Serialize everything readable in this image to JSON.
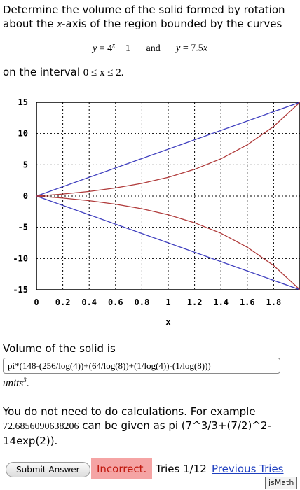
{
  "problem": {
    "intro": "Determine the volume of the solid formed by rotation about the ",
    "axis_var": "x",
    "intro_end": "-axis of the region bounded by the curves",
    "curve1_lhs": "y",
    "curve1_rhs": " = 4",
    "curve1_exp": "x",
    "curve1_tail": " − 1",
    "connector": "and",
    "curve2_lhs": "y",
    "curve2_rhs": " = 7.5",
    "curve2_var": "x",
    "interval_prefix": "on the interval ",
    "interval_expr": "0 ≤ x ≤ 2."
  },
  "chart_data": {
    "type": "line",
    "xlabel": "x",
    "ylabel": "",
    "xlim": [
      0,
      2
    ],
    "ylim": [
      -15,
      15
    ],
    "x_ticks": [
      "0",
      "0.2",
      "0.4",
      "0.6",
      "0.8",
      "1",
      "1.2",
      "1.4",
      "1.6",
      "1.8"
    ],
    "y_ticks": [
      "15",
      "10",
      "5",
      "0",
      "-5",
      "-10",
      "-15"
    ],
    "grid": true,
    "series": [
      {
        "color": "#3f3fbf",
        "x": [
          0,
          2
        ],
        "y": [
          0,
          15
        ]
      },
      {
        "color": "#3f3fbf",
        "x": [
          0,
          2
        ],
        "y": [
          0,
          -15
        ]
      },
      {
        "color": "#b03a3a",
        "x": [
          0,
          0.2,
          0.4,
          0.6,
          0.8,
          1.0,
          1.2,
          1.4,
          1.6,
          1.8,
          2.0
        ],
        "y": [
          0,
          0.32,
          0.74,
          1.3,
          2.03,
          3.0,
          4.28,
          5.96,
          8.19,
          11.13,
          15
        ]
      },
      {
        "color": "#b03a3a",
        "x": [
          0,
          0.2,
          0.4,
          0.6,
          0.8,
          1.0,
          1.2,
          1.4,
          1.6,
          1.8,
          2.0
        ],
        "y": [
          0,
          -0.32,
          -0.74,
          -1.3,
          -2.03,
          -3.0,
          -4.28,
          -5.96,
          -8.19,
          -11.13,
          -15
        ]
      }
    ]
  },
  "answer": {
    "label": "Volume of the solid is",
    "value": "pi*(148-(256/log(4))+(64/log(8))+(1/log(4))-(1/log(8)))",
    "units": "units",
    "units_sup": "3"
  },
  "note": {
    "text1": "You do not need to do calculations. For example ",
    "example_number": "72.6856090638206",
    "text2": " can be given as pi (7^3/3+(7/2)^2-14exp(2))."
  },
  "footer": {
    "submit_label": "Submit Answer",
    "status": "Incorrect.",
    "tries": "Tries 1/12",
    "previous_tries": "Previous Tries",
    "jsmath": "jsMath"
  }
}
